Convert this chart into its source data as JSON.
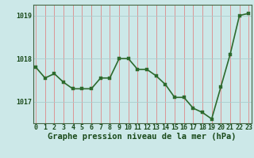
{
  "x": [
    0,
    1,
    2,
    3,
    4,
    5,
    6,
    7,
    8,
    9,
    10,
    11,
    12,
    13,
    14,
    15,
    16,
    17,
    18,
    19,
    20,
    21,
    22,
    23
  ],
  "y": [
    1017.8,
    1017.55,
    1017.65,
    1017.45,
    1017.3,
    1017.3,
    1017.3,
    1017.55,
    1017.55,
    1018.0,
    1018.0,
    1017.75,
    1017.75,
    1017.6,
    1017.4,
    1017.1,
    1017.1,
    1016.85,
    1016.75,
    1016.6,
    1017.35,
    1018.1,
    1019.0,
    1019.05
  ],
  "line_color": "#2d6a2d",
  "marker_color": "#2d6a2d",
  "bg_color": "#cce8e8",
  "grid_color_v": "#dd8888",
  "grid_color_h": "#aacccc",
  "axis_label_color": "#1a4a1a",
  "tick_label_color": "#1a4a1a",
  "xlabel": "Graphe pression niveau de la mer (hPa)",
  "ylim": [
    1016.5,
    1019.25
  ],
  "yticks": [
    1017,
    1018,
    1019
  ],
  "xticks": [
    0,
    1,
    2,
    3,
    4,
    5,
    6,
    7,
    8,
    9,
    10,
    11,
    12,
    13,
    14,
    15,
    16,
    17,
    18,
    19,
    20,
    21,
    22,
    23
  ],
  "marker_size": 2.8,
  "line_width": 1.2,
  "xlabel_fontsize": 7.5,
  "tick_fontsize": 6.0
}
